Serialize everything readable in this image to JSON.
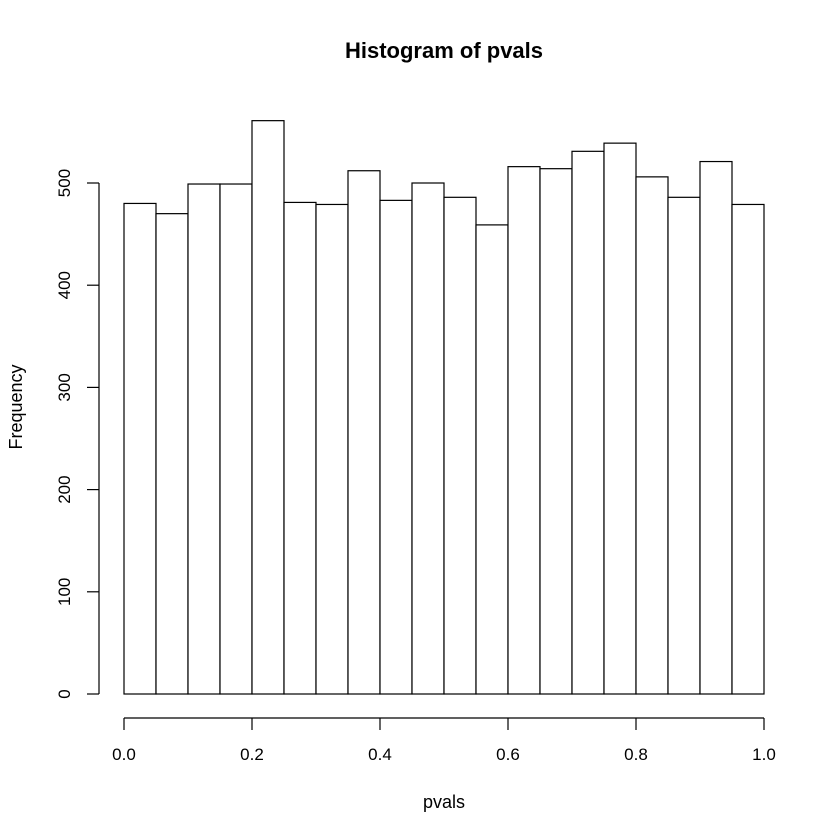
{
  "chart_data": {
    "type": "bar",
    "title": "Histogram of pvals",
    "xlabel": "pvals",
    "ylabel": "Frequency",
    "xlim": [
      0,
      1
    ],
    "ylim": [
      0,
      560
    ],
    "bin_width": 0.05,
    "bins": [
      {
        "start": 0.0,
        "end": 0.05,
        "count": 480
      },
      {
        "start": 0.05,
        "end": 0.1,
        "count": 470
      },
      {
        "start": 0.1,
        "end": 0.15,
        "count": 499
      },
      {
        "start": 0.15,
        "end": 0.2,
        "count": 499
      },
      {
        "start": 0.2,
        "end": 0.25,
        "count": 561
      },
      {
        "start": 0.25,
        "end": 0.3,
        "count": 481
      },
      {
        "start": 0.3,
        "end": 0.35,
        "count": 479
      },
      {
        "start": 0.35,
        "end": 0.4,
        "count": 512
      },
      {
        "start": 0.4,
        "end": 0.45,
        "count": 483
      },
      {
        "start": 0.45,
        "end": 0.5,
        "count": 500
      },
      {
        "start": 0.5,
        "end": 0.55,
        "count": 486
      },
      {
        "start": 0.55,
        "end": 0.6,
        "count": 459
      },
      {
        "start": 0.6,
        "end": 0.65,
        "count": 516
      },
      {
        "start": 0.65,
        "end": 0.7,
        "count": 514
      },
      {
        "start": 0.7,
        "end": 0.75,
        "count": 531
      },
      {
        "start": 0.75,
        "end": 0.8,
        "count": 539
      },
      {
        "start": 0.8,
        "end": 0.85,
        "count": 506
      },
      {
        "start": 0.85,
        "end": 0.9,
        "count": 486
      },
      {
        "start": 0.9,
        "end": 0.95,
        "count": 521
      },
      {
        "start": 0.95,
        "end": 1.0,
        "count": 479
      }
    ],
    "xticks": [
      {
        "value": 0.0,
        "label": "0.0"
      },
      {
        "value": 0.2,
        "label": "0.2"
      },
      {
        "value": 0.4,
        "label": "0.4"
      },
      {
        "value": 0.6,
        "label": "0.6"
      },
      {
        "value": 0.8,
        "label": "0.8"
      },
      {
        "value": 1.0,
        "label": "1.0"
      }
    ],
    "yticks": [
      {
        "value": 0,
        "label": "0"
      },
      {
        "value": 100,
        "label": "100"
      },
      {
        "value": 200,
        "label": "200"
      },
      {
        "value": 300,
        "label": "300"
      },
      {
        "value": 400,
        "label": "400"
      },
      {
        "value": 500,
        "label": "500"
      }
    ],
    "grid": false,
    "legend": "none",
    "bar_fill": "#ffffff",
    "bar_stroke": "#000000"
  }
}
